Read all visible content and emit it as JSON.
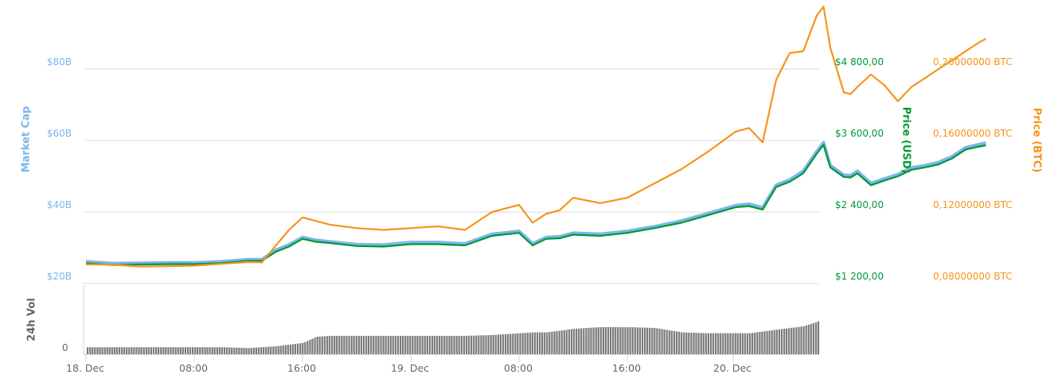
{
  "chart_data": {
    "type": "line",
    "title": "",
    "x_ticks": [
      "18. Dec",
      "08:00",
      "16:00",
      "19. Dec",
      "08:00",
      "16:00",
      "20. Dec"
    ],
    "axes": {
      "market_cap": {
        "label": "Market Cap",
        "ticks": [
          "$20B",
          "$40B",
          "$60B",
          "$80B"
        ],
        "color": "#7cb5ec"
      },
      "price_usd": {
        "label": "Price (USD)",
        "ticks": [
          "$1 200,00",
          "$2 400,00",
          "$3 600,00",
          "$4 800,00"
        ],
        "color": "#009933"
      },
      "price_btc": {
        "label": "Price (BTC)",
        "ticks": [
          "0,08000000 BTC",
          "0,12000000 BTC",
          "0,16000000 BTC",
          "0,20000000 BTC"
        ],
        "color": "#f7931a"
      },
      "volume": {
        "label": "24h Vol",
        "ticks": [
          "0"
        ],
        "color": "#666666"
      }
    },
    "grid": true,
    "legend": "none",
    "x_hours": [
      0,
      2,
      4,
      6,
      8,
      10,
      12,
      13,
      14,
      15,
      16,
      17,
      18,
      20,
      22,
      24,
      26,
      28,
      30,
      32,
      33,
      34,
      35,
      36,
      38,
      40,
      42,
      44,
      46,
      48,
      49,
      50,
      51,
      52,
      53,
      54,
      54.5,
      55,
      56,
      56.5,
      57,
      58,
      59,
      60,
      61,
      62,
      63,
      64,
      65,
      66,
      66.5
    ],
    "series": [
      {
        "name": "Price (USD)",
        "axis": "price_usd",
        "color": "#009933",
        "values": [
          1540,
          1510,
          1520,
          1525,
          1525,
          1540,
          1580,
          1580,
          1730,
          1820,
          1950,
          1900,
          1880,
          1830,
          1820,
          1860,
          1860,
          1840,
          2000,
          2050,
          1840,
          1950,
          1960,
          2020,
          2000,
          2050,
          2130,
          2220,
          2350,
          2480,
          2500,
          2440,
          2820,
          2910,
          3050,
          3380,
          3530,
          3150,
          2990,
          2980,
          3050,
          2850,
          2930,
          3000,
          3110,
          3150,
          3200,
          3300,
          3450,
          3500,
          3520
        ]
      },
      {
        "name": "Market Cap",
        "axis": "market_cap",
        "color": "#7cb5ec",
        "values_billion": [
          25.8,
          25.3,
          25.4,
          25.5,
          25.5,
          25.8,
          26.4,
          26.4,
          29.0,
          30.5,
          32.6,
          31.8,
          31.4,
          30.6,
          30.5,
          31.2,
          31.2,
          30.8,
          33.5,
          34.3,
          30.8,
          32.6,
          32.8,
          33.8,
          33.5,
          34.3,
          35.6,
          37.2,
          39.3,
          41.5,
          41.9,
          40.9,
          47.2,
          48.7,
          51.1,
          56.6,
          59.1,
          52.7,
          50.0,
          49.9,
          51.1,
          47.7,
          49.0,
          50.2,
          52.1,
          52.7,
          53.6,
          55.2,
          57.7,
          58.6,
          59.0
        ]
      },
      {
        "name": "Price (BTC)",
        "axis": "price_btc",
        "color": "#f7931a",
        "values": [
          0.0907,
          0.0905,
          0.0895,
          0.0897,
          0.09,
          0.091,
          0.092,
          0.0918,
          0.101,
          0.11,
          0.117,
          0.115,
          0.113,
          0.111,
          0.11,
          0.111,
          0.112,
          0.11,
          0.12,
          0.124,
          0.114,
          0.119,
          0.121,
          0.128,
          0.125,
          0.128,
          0.136,
          0.144,
          0.154,
          0.165,
          0.167,
          0.159,
          0.194,
          0.209,
          0.21,
          0.23,
          0.235,
          0.212,
          0.187,
          0.186,
          0.19,
          0.197,
          0.191,
          0.182,
          0.19,
          0.195,
          0.2,
          0.205,
          0.21,
          0.215,
          0.217
        ]
      },
      {
        "name": "24h Vol",
        "axis": "volume",
        "color": "#666666",
        "relative_heights": [
          0.08,
          0.08,
          0.08,
          0.08,
          0.08,
          0.08,
          0.07,
          0.08,
          0.09,
          0.11,
          0.13,
          0.2,
          0.21,
          0.21,
          0.21,
          0.21,
          0.21,
          0.21,
          0.22,
          0.24,
          0.25,
          0.25,
          0.27,
          0.29,
          0.31,
          0.31,
          0.3,
          0.25,
          0.24,
          0.24,
          0.24,
          0.26,
          0.28,
          0.3,
          0.32,
          0.37,
          0.42,
          0.48,
          0.55,
          0.6,
          0.64,
          0.65,
          0.67,
          0.68,
          0.67,
          0.68,
          0.69,
          0.7,
          0.71,
          0.72,
          0.74
        ]
      }
    ]
  },
  "labels": {
    "market_cap_axis": "Market Cap",
    "usd_axis": "Price (USD)",
    "btc_axis": "Price (BTC)",
    "volume_axis": "24h Vol",
    "volume_zero": "0"
  }
}
